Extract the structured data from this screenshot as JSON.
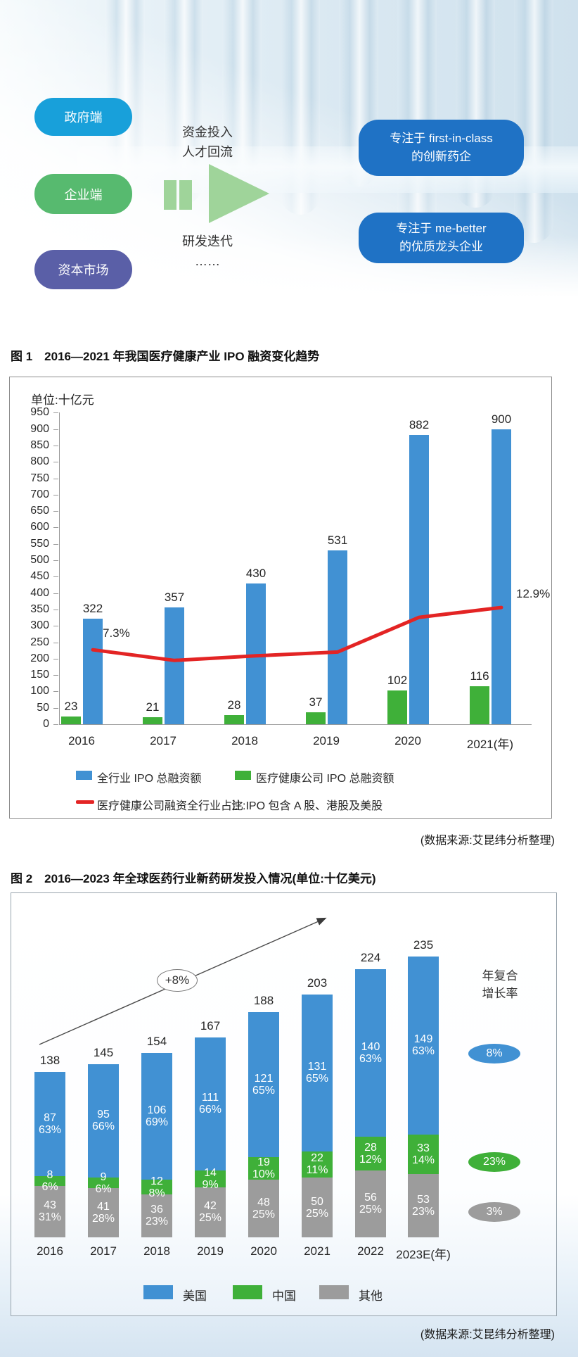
{
  "hero": {
    "pills": [
      {
        "label": "政府端",
        "color": "#18a0da"
      },
      {
        "label": "企业端",
        "color": "#57ba6f"
      },
      {
        "label": "资本市场",
        "color": "#5a5fa7"
      }
    ],
    "flow_top_line1": "资金投入",
    "flow_top_line2": "人才回流",
    "flow_bottom_line1": "研发迭代",
    "flow_bottom_line2": "……",
    "arrow_color": "#9fd49a",
    "targets": [
      {
        "line1": "专注于 first-in-class",
        "line2": "的创新药企",
        "color": "#1f72c5"
      },
      {
        "line1": "专注于 me-better",
        "line2": "的优质龙头企业",
        "color": "#1f72c5"
      }
    ]
  },
  "figure1": {
    "caption": "图 1　2016—2021 年我国医疗健康产业 IPO 融资变化趋势",
    "source": "(数据来源:艾昆纬分析整理)"
  },
  "figure2": {
    "caption": "图 2　2016—2023 年全球医药行业新药研发投入情况(单位:十亿美元)",
    "source": "(数据来源:艾昆纬分析整理)"
  },
  "chart_data": [
    {
      "type": "bar",
      "title": "2016—2021 年我国医疗健康产业 IPO 融资变化趋势",
      "unit_label": "单位:十亿元",
      "categories": [
        "2016",
        "2017",
        "2018",
        "2019",
        "2020",
        "2021(年)"
      ],
      "ylim": [
        0,
        950
      ],
      "ytick_step": 50,
      "grid": false,
      "legend_position": "bottom",
      "series": [
        {
          "name": "全行业 IPO 总融资额",
          "type": "bar",
          "color": "#4191d3",
          "values": [
            322,
            357,
            430,
            531,
            882,
            900
          ]
        },
        {
          "name": "医疗健康公司 IPO 总融资额",
          "type": "bar",
          "color": "#3fb039",
          "values": [
            23,
            21,
            28,
            37,
            102,
            116
          ]
        },
        {
          "name": "医疗健康公司融资全行业占比",
          "type": "line",
          "color": "#e32424",
          "values_pct": [
            7.3,
            5.9,
            6.5,
            7.0,
            11.6,
            12.9
          ],
          "first_point_label": "7.3%",
          "last_point_label": "12.9%"
        }
      ],
      "note": "注:IPO 包含 A 股、港股及美股"
    },
    {
      "type": "bar",
      "stacked": true,
      "title": "2016—2023 年全球医药行业新药研发投入情况",
      "unit": "十亿美元",
      "categories": [
        "2016",
        "2017",
        "2018",
        "2019",
        "2020",
        "2021",
        "2022",
        "2023E(年)"
      ],
      "totals": [
        138,
        145,
        154,
        167,
        188,
        203,
        224,
        235
      ],
      "series": [
        {
          "name": "美国",
          "color": "#4191d3",
          "values": [
            87,
            95,
            106,
            111,
            121,
            131,
            140,
            149
          ],
          "pct_labels": [
            "63%",
            "66%",
            "69%",
            "66%",
            "65%",
            "65%",
            "63%",
            "63%"
          ]
        },
        {
          "name": "中国",
          "color": "#3fb039",
          "values": [
            8,
            9,
            12,
            14,
            19,
            22,
            28,
            33
          ],
          "pct_labels": [
            "6%",
            "6%",
            "8%",
            "9%",
            "10%",
            "11%",
            "12%",
            "14%"
          ]
        },
        {
          "name": "其他",
          "color": "#9c9c9c",
          "values": [
            43,
            41,
            36,
            42,
            48,
            50,
            56,
            53
          ],
          "pct_labels": [
            "31%",
            "28%",
            "23%",
            "25%",
            "25%",
            "25%",
            "25%",
            "23%"
          ]
        }
      ],
      "trend_label": "+8%",
      "cagr_title_line1": "年复合",
      "cagr_title_line2": "增长率",
      "cagr": [
        {
          "label": "8%",
          "color": "#4191d3"
        },
        {
          "label": "23%",
          "color": "#3fb039"
        },
        {
          "label": "3%",
          "color": "#9c9c9c"
        }
      ],
      "legend_position": "bottom"
    }
  ]
}
